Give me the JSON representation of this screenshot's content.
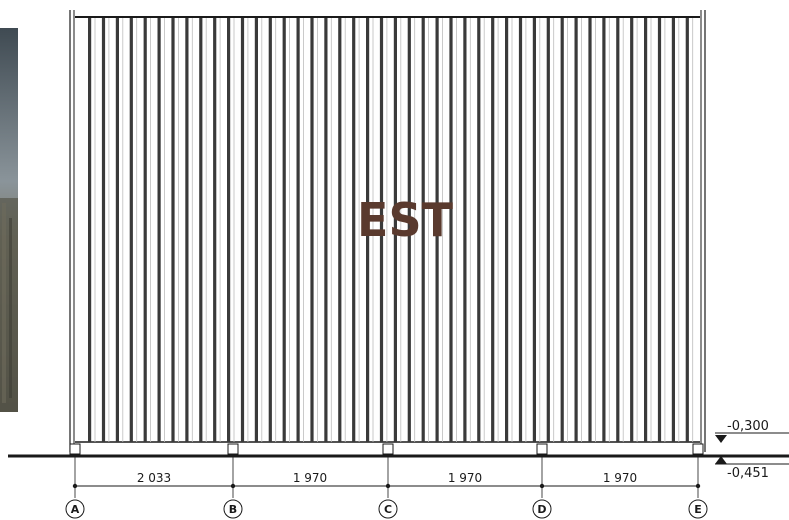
{
  "title": "EST",
  "title_color": "#5a3a2e",
  "elevations": {
    "top": "-0,300",
    "bottom": "-0,451"
  },
  "grid_axes": [
    "A",
    "B",
    "C",
    "D",
    "E"
  ],
  "spans": [
    "2 033",
    "1 970",
    "1 970",
    "1 970"
  ],
  "photo": {
    "description_icon": "site-photo",
    "sky_color": "#7f8a90",
    "ground_color": "#5b5a4c"
  },
  "line_color": "#1a1a1a",
  "panel_fill": "#ffffff"
}
